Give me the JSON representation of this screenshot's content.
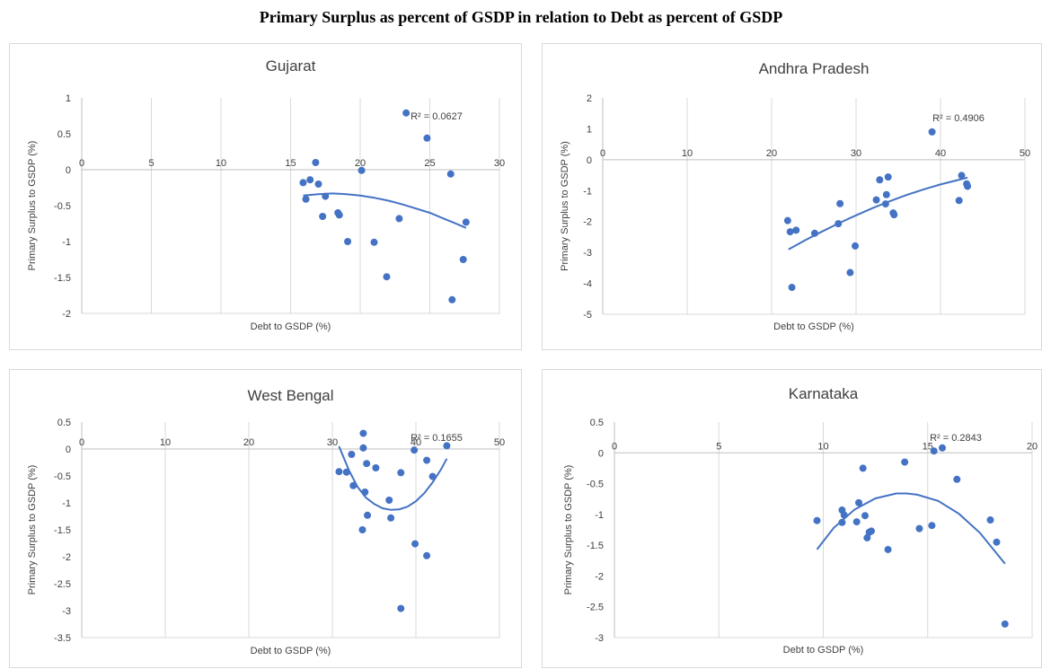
{
  "page_title": "Primary Surplus as percent of GSDP in relation to Debt as percent of GSDP",
  "colors": {
    "marker": "#4472c4",
    "trend": "#4472c4",
    "grid": "#d9d9d9",
    "axis": "#bfbfbf",
    "text": "#404040",
    "border": "#d9d9d9"
  },
  "chart_data": [
    {
      "type": "scatter",
      "title": "Gujarat",
      "xlabel": "Debt to GSDP (%)",
      "ylabel": "Primary Surplus to GSDP (%)",
      "xlim": [
        0,
        30
      ],
      "ylim": [
        -2,
        1
      ],
      "x_ticks": [
        0,
        5,
        10,
        15,
        20,
        25,
        30
      ],
      "y_ticks": [
        1,
        0.5,
        0,
        -0.5,
        -1,
        -1.5,
        -2
      ],
      "x_tick_labels": [
        "0",
        "5",
        "10",
        "15",
        "20",
        "25",
        "30"
      ],
      "y_tick_labels": [
        "1",
        "0.5",
        "0",
        "-0.5",
        "-1",
        "-1.5",
        "-2"
      ],
      "points": [
        [
          15.9,
          -0.18
        ],
        [
          16.4,
          -0.14
        ],
        [
          16.8,
          0.1
        ],
        [
          17.0,
          -0.2
        ],
        [
          16.1,
          -0.41
        ],
        [
          17.5,
          -0.37
        ],
        [
          17.3,
          -0.65
        ],
        [
          18.4,
          -0.6
        ],
        [
          18.5,
          -0.63
        ],
        [
          19.1,
          -1.0
        ],
        [
          20.1,
          -0.01
        ],
        [
          21.0,
          -1.01
        ],
        [
          21.9,
          -1.49
        ],
        [
          22.8,
          -0.68
        ],
        [
          23.3,
          0.79
        ],
        [
          24.8,
          0.44
        ],
        [
          26.5,
          -0.06
        ],
        [
          26.6,
          -1.81
        ],
        [
          27.4,
          -1.25
        ],
        [
          27.6,
          -0.73
        ]
      ],
      "trendline": {
        "type": "polynomial",
        "x": [
          15.9,
          17,
          18,
          19,
          20,
          21,
          22,
          23,
          24,
          25,
          26,
          27,
          27.6
        ],
        "y": [
          -0.36,
          -0.34,
          -0.33,
          -0.34,
          -0.36,
          -0.39,
          -0.43,
          -0.48,
          -0.54,
          -0.6,
          -0.68,
          -0.76,
          -0.81
        ]
      },
      "r2": "R² = 0.0627"
    },
    {
      "type": "scatter",
      "title": "Andhra Pradesh",
      "xlabel": "Debt to GSDP (%)",
      "ylabel": "Primary Surplus to GSDP (%)",
      "xlim": [
        0,
        50
      ],
      "ylim": [
        -5,
        2
      ],
      "x_ticks": [
        0,
        10,
        20,
        30,
        40,
        50
      ],
      "y_ticks": [
        2,
        1,
        0,
        -1,
        -2,
        -3,
        -4,
        -5
      ],
      "x_tick_labels": [
        "0",
        "10",
        "20",
        "30",
        "40",
        "50"
      ],
      "y_tick_labels": [
        "2",
        "1",
        "0",
        "-1",
        "-2",
        "-3",
        "-4",
        "-5"
      ],
      "points": [
        [
          21.9,
          -1.97
        ],
        [
          22.2,
          -2.33
        ],
        [
          22.4,
          -4.13
        ],
        [
          22.9,
          -2.28
        ],
        [
          25.1,
          -2.38
        ],
        [
          27.9,
          -2.07
        ],
        [
          28.1,
          -1.42
        ],
        [
          29.3,
          -3.65
        ],
        [
          29.9,
          -2.79
        ],
        [
          32.4,
          -1.3
        ],
        [
          32.8,
          -0.65
        ],
        [
          33.5,
          -1.43
        ],
        [
          33.6,
          -1.13
        ],
        [
          33.8,
          -0.56
        ],
        [
          34.4,
          -1.72
        ],
        [
          34.5,
          -1.78
        ],
        [
          39.0,
          0.9
        ],
        [
          42.2,
          -1.32
        ],
        [
          42.5,
          -0.51
        ],
        [
          43.1,
          -0.78
        ],
        [
          43.2,
          -0.86
        ]
      ],
      "trendline": {
        "type": "polynomial",
        "x": [
          22,
          24,
          26,
          28,
          30,
          32,
          34,
          36,
          38,
          40,
          42,
          43.2
        ],
        "y": [
          -2.9,
          -2.6,
          -2.32,
          -2.05,
          -1.8,
          -1.56,
          -1.34,
          -1.14,
          -0.96,
          -0.8,
          -0.66,
          -0.58
        ]
      },
      "r2": "R² = 0.4906"
    },
    {
      "type": "scatter",
      "title": "West Bengal",
      "xlabel": "Debt to GSDP (%)",
      "ylabel": "Primary Surplus to GSDP (%)",
      "xlim": [
        0,
        50
      ],
      "ylim": [
        -3.5,
        0.5
      ],
      "x_ticks": [
        0,
        10,
        20,
        30,
        40,
        50
      ],
      "y_ticks": [
        0.5,
        0,
        -0.5,
        -1,
        -1.5,
        -2,
        -2.5,
        -3,
        -3.5
      ],
      "x_tick_labels": [
        "0",
        "10",
        "20",
        "30",
        "40",
        "50"
      ],
      "y_tick_labels": [
        "0.5",
        "0",
        "-0.5",
        "-1",
        "-1.5",
        "-2",
        "-2.5",
        "-3",
        "-3.5"
      ],
      "points": [
        [
          30.8,
          -0.42
        ],
        [
          31.7,
          -0.43
        ],
        [
          32.3,
          -0.1
        ],
        [
          32.5,
          -0.68
        ],
        [
          33.6,
          -1.5
        ],
        [
          33.7,
          0.29
        ],
        [
          33.7,
          0.02
        ],
        [
          33.9,
          -0.8
        ],
        [
          34.1,
          -0.27
        ],
        [
          34.2,
          -1.23
        ],
        [
          35.2,
          -0.35
        ],
        [
          36.8,
          -0.95
        ],
        [
          37.0,
          -1.28
        ],
        [
          38.2,
          -0.44
        ],
        [
          38.2,
          -2.96
        ],
        [
          39.8,
          -0.02
        ],
        [
          39.9,
          -1.76
        ],
        [
          41.3,
          -0.21
        ],
        [
          41.3,
          -1.98
        ],
        [
          42.0,
          -0.51
        ],
        [
          43.7,
          0.06
        ]
      ],
      "trendline": {
        "type": "polynomial",
        "x": [
          30.8,
          32,
          33,
          34,
          35,
          36,
          37,
          38,
          39,
          40,
          41,
          42,
          43,
          43.7
        ],
        "y": [
          0.05,
          -0.4,
          -0.7,
          -0.9,
          -1.02,
          -1.1,
          -1.13,
          -1.12,
          -1.07,
          -0.97,
          -0.82,
          -0.62,
          -0.38,
          -0.18
        ]
      },
      "r2": "R² = 0.1655"
    },
    {
      "type": "scatter",
      "title": "Karnataka",
      "xlabel": "Debt to GSDP (%)",
      "ylabel": "Primary Surplus to GSDP (%)",
      "xlim": [
        0,
        20
      ],
      "ylim": [
        -3,
        0.5
      ],
      "x_ticks": [
        0,
        5,
        10,
        15,
        20
      ],
      "y_ticks": [
        0.5,
        0,
        -0.5,
        -1,
        -1.5,
        -2,
        -2.5,
        -3
      ],
      "x_tick_labels": [
        "0",
        "5",
        "10",
        "15",
        "20"
      ],
      "y_tick_labels": [
        "0.5",
        "0",
        "-0.5",
        "-1",
        "-1.5",
        "-2",
        "-2.5",
        "-3"
      ],
      "points": [
        [
          9.7,
          -1.1
        ],
        [
          10.9,
          -0.93
        ],
        [
          10.9,
          -1.13
        ],
        [
          11.0,
          -1.01
        ],
        [
          11.6,
          -1.12
        ],
        [
          11.7,
          -0.81
        ],
        [
          11.9,
          -0.25
        ],
        [
          12.0,
          -1.02
        ],
        [
          12.1,
          -1.38
        ],
        [
          12.2,
          -1.29
        ],
        [
          12.3,
          -1.27
        ],
        [
          13.1,
          -1.57
        ],
        [
          13.9,
          -0.15
        ],
        [
          14.6,
          -1.23
        ],
        [
          15.2,
          -1.18
        ],
        [
          15.3,
          0.03
        ],
        [
          15.7,
          0.08
        ],
        [
          16.4,
          -0.43
        ],
        [
          18.0,
          -1.09
        ],
        [
          18.3,
          -1.45
        ],
        [
          18.7,
          -2.78
        ]
      ],
      "trendline": {
        "type": "polynomial",
        "x": [
          9.7,
          10.5,
          11.5,
          12.5,
          13.5,
          14,
          14.5,
          15.5,
          16.5,
          17.5,
          18.7
        ],
        "y": [
          -1.57,
          -1.22,
          -0.92,
          -0.74,
          -0.66,
          -0.66,
          -0.68,
          -0.78,
          -0.99,
          -1.3,
          -1.8
        ]
      },
      "r2": "R² = 0.2843"
    }
  ]
}
